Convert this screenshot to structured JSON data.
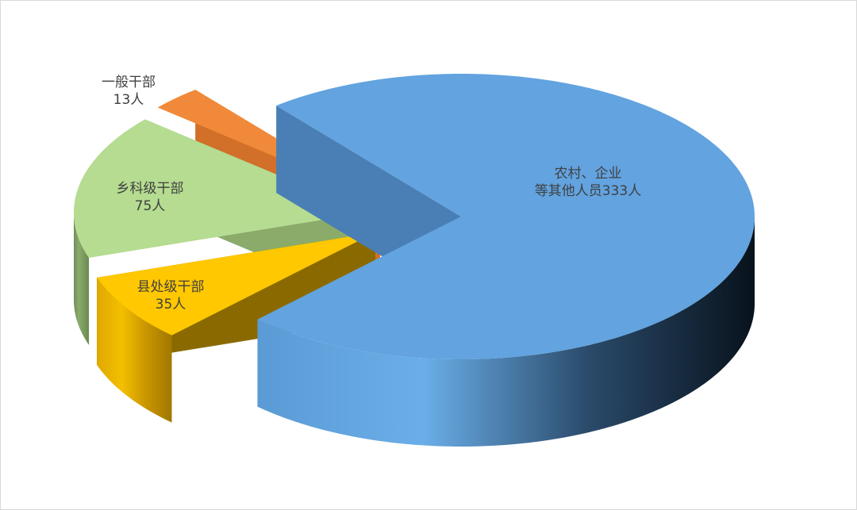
{
  "chart_data": {
    "type": "pie",
    "style": "3d-exploded",
    "slices": [
      {
        "name": "农村、企业等其他人员",
        "value": 333,
        "label": "333人",
        "color": "#62a3e0"
      },
      {
        "name": "县处级干部",
        "value": 35,
        "label": "35人",
        "color": "#ffc800"
      },
      {
        "name": "乡科级干部",
        "value": 75,
        "label": "75人",
        "color": "#b5dc91"
      },
      {
        "name": "一般干部",
        "value": 13,
        "label": "13人",
        "color": "#f08a3a"
      }
    ]
  }
}
